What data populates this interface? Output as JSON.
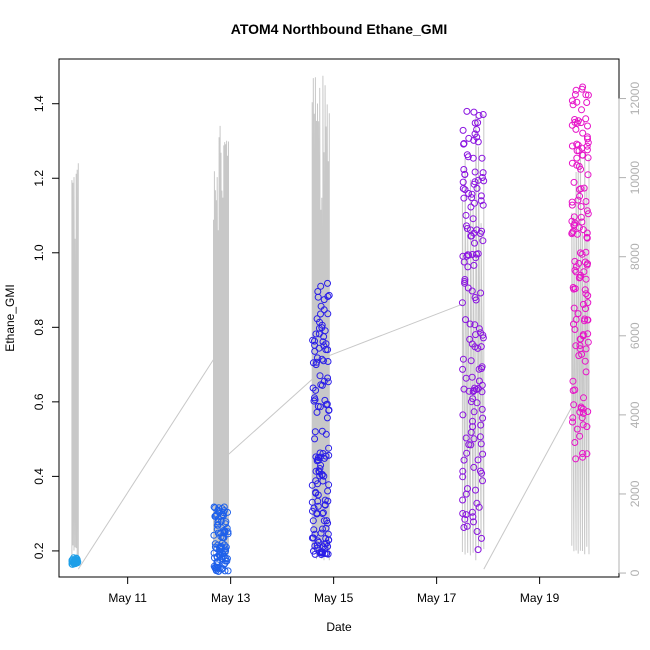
{
  "chart_data": {
    "type": "scatter",
    "title": "ATOM4 Northbound Ethane_GMI",
    "xlabel": "Date",
    "ylabel": "Ethane_GMI",
    "xlim": [
      "2016-05-09T16:00",
      "2016-05-20T13:00"
    ],
    "ylim": [
      0.13,
      1.52
    ],
    "y2lim": [
      -100,
      13000
    ],
    "x_ticks": [
      {
        "date": "2016-05-11",
        "label": "May 11"
      },
      {
        "date": "2016-05-13",
        "label": "May 13"
      },
      {
        "date": "2016-05-15",
        "label": "May 15"
      },
      {
        "date": "2016-05-17",
        "label": "May 17"
      },
      {
        "date": "2016-05-19",
        "label": "May 19"
      }
    ],
    "y_ticks": [
      {
        "value": 0.2,
        "label": "0.2"
      },
      {
        "value": 0.4,
        "label": "0.4"
      },
      {
        "value": 0.6,
        "label": "0.6"
      },
      {
        "value": 0.8,
        "label": "0.8"
      },
      {
        "value": 1.0,
        "label": "1.0"
      },
      {
        "value": 1.2,
        "label": "1.2"
      },
      {
        "value": 1.4,
        "label": "1.4"
      }
    ],
    "y2_ticks": [
      {
        "value": 0,
        "label": "0"
      },
      {
        "value": 2000,
        "label": "2000"
      },
      {
        "value": 4000,
        "label": "4000"
      },
      {
        "value": 6000,
        "label": "6000"
      },
      {
        "value": 8000,
        "label": "8000"
      },
      {
        "value": 10000,
        "label": "10000"
      },
      {
        "value": 12000,
        "label": "12000"
      }
    ],
    "grid": false,
    "colors": {
      "flight_1": "#1e9fe8",
      "flight_2": "#1e60ea",
      "flight_3": "#2a1ee8",
      "flight_4": "#8a14e0",
      "flight_5": "#e614c8",
      "altitude_line": "#c8c8c8"
    },
    "flights": [
      {
        "start": "2016-05-09T22:00",
        "end": "2016-05-10T01:00",
        "y_min": 0.15,
        "y_max": 0.19,
        "alt_max": 11000,
        "profiles": 3,
        "points": 30,
        "color": "#1e9fe8"
      },
      {
        "start": "2016-05-12T16:00",
        "end": "2016-05-12T23:00",
        "y_min": 0.145,
        "y_max": 0.32,
        "alt_max": 12000,
        "profiles": 8,
        "points": 90,
        "color": "#1e60ea"
      },
      {
        "start": "2016-05-14T14:00",
        "end": "2016-05-14T22:00",
        "y_min": 0.19,
        "y_max": 0.92,
        "alt_max": 12600,
        "profiles": 8,
        "points": 140,
        "color": "#2a1ee8"
      },
      {
        "start": "2016-05-17T12:00",
        "end": "2016-05-17T22:00",
        "y_min": 0.2,
        "y_max": 1.41,
        "alt_max": 11800,
        "profiles": 4,
        "points": 150,
        "color": "#8a14e0"
      },
      {
        "start": "2016-05-19T15:00",
        "end": "2016-05-19T23:00",
        "y_min": 0.44,
        "y_max": 1.47,
        "alt_max": 11700,
        "profiles": 4,
        "points": 140,
        "color": "#e614c8"
      }
    ],
    "altitude_transits": [
      {
        "x": [
          "2016-05-10T01:00",
          "2016-05-12T16:00"
        ],
        "alt": [
          100,
          5400
        ]
      },
      {
        "x": [
          "2016-05-12T23:00",
          "2016-05-14T14:00"
        ],
        "alt": [
          3000,
          4900
        ]
      },
      {
        "x": [
          "2016-05-14T22:00",
          "2016-05-17T12:00"
        ],
        "alt": [
          5500,
          6800
        ]
      },
      {
        "x": [
          "2016-05-17T22:00",
          "2016-05-19T15:00"
        ],
        "alt": [
          100,
          4200
        ]
      }
    ]
  }
}
